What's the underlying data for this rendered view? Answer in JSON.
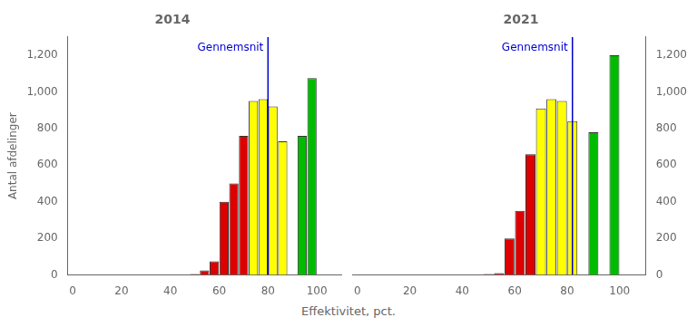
{
  "chart_data": [
    {
      "type": "bar",
      "title": "2014",
      "xlabel": "Effektivitet, pct.",
      "ylabel": "Antal afdelinger",
      "x": [
        50,
        54,
        58,
        62,
        66,
        70,
        74,
        78,
        82,
        86,
        94,
        98
      ],
      "values": [
        5,
        25,
        75,
        400,
        500,
        760,
        950,
        960,
        920,
        730,
        760,
        1075
      ],
      "colors": [
        "#DD0000",
        "#DD0000",
        "#DD0000",
        "#DD0000",
        "#DD0000",
        "#DD0000",
        "#FFFF00",
        "#FFFF00",
        "#FFFF00",
        "#FFFF00",
        "#00BB00",
        "#00BB00"
      ],
      "xlim": [
        -2,
        110
      ],
      "xticks": [
        0,
        20,
        40,
        60,
        80,
        100
      ],
      "ylim": [
        0,
        1300
      ],
      "yticks": [
        0,
        200,
        400,
        600,
        800,
        1000,
        1200
      ],
      "grid": false,
      "annotations": [
        {
          "x": 80,
          "text": "Gennemsnit",
          "color": "#0000CC"
        }
      ]
    },
    {
      "type": "bar",
      "title": "2021",
      "x": [
        50,
        54,
        58,
        62,
        66,
        70,
        74,
        78,
        82,
        90,
        98
      ],
      "values": [
        5,
        10,
        200,
        350,
        660,
        910,
        960,
        950,
        840,
        780,
        1200
      ],
      "colors": [
        "#DD0000",
        "#DD0000",
        "#DD0000",
        "#DD0000",
        "#DD0000",
        "#FFFF00",
        "#FFFF00",
        "#FFFF00",
        "#FFFF00",
        "#00BB00",
        "#00BB00"
      ],
      "xlim": [
        -2,
        110
      ],
      "xticks": [
        0,
        20,
        40,
        60,
        80,
        100
      ],
      "ylim": [
        0,
        1300
      ],
      "yticks": [
        0,
        200,
        400,
        600,
        800,
        1000,
        1200
      ],
      "grid": false,
      "annotations": [
        {
          "x": 82,
          "text": "Gennemsnit",
          "color": "#0000CC"
        }
      ]
    }
  ]
}
